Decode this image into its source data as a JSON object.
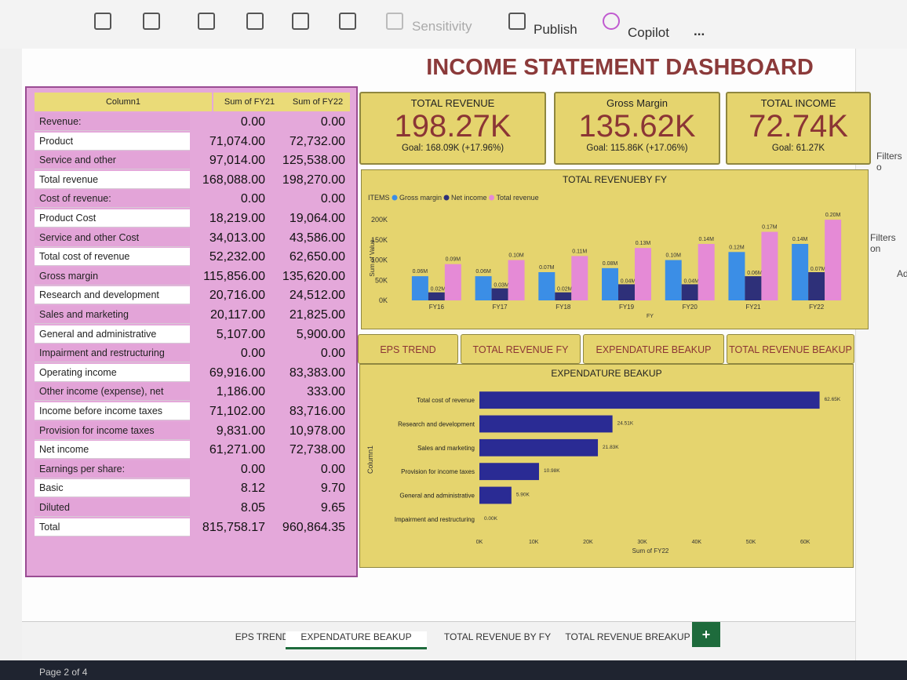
{
  "toolbar": {
    "items": [
      "Sensitivity",
      "Publish",
      "Copilot",
      "..."
    ]
  },
  "title": "INCOME STATEMENT DASHBOARD",
  "filters_pane": {
    "items": [
      "Filters o",
      "Filters on",
      "Ad"
    ]
  },
  "table": {
    "headers": [
      "Column1",
      "Sum of FY21",
      "Sum of FY22"
    ],
    "rows": [
      [
        "Revenue:",
        "0.00",
        "0.00"
      ],
      [
        "Product",
        "71,074.00",
        "72,732.00"
      ],
      [
        "Service and other",
        "97,014.00",
        "125,538.00"
      ],
      [
        "Total revenue",
        "168,088.00",
        "198,270.00"
      ],
      [
        "Cost of revenue:",
        "0.00",
        "0.00"
      ],
      [
        "Product Cost",
        "18,219.00",
        "19,064.00"
      ],
      [
        "Service and other Cost",
        "34,013.00",
        "43,586.00"
      ],
      [
        "Total cost of revenue",
        "52,232.00",
        "62,650.00"
      ],
      [
        "Gross margin",
        "115,856.00",
        "135,620.00"
      ],
      [
        "Research and development",
        "20,716.00",
        "24,512.00"
      ],
      [
        "Sales and marketing",
        "20,117.00",
        "21,825.00"
      ],
      [
        "General and administrative",
        "5,107.00",
        "5,900.00"
      ],
      [
        "Impairment and restructuring",
        "0.00",
        "0.00"
      ],
      [
        "Operating income",
        "69,916.00",
        "83,383.00"
      ],
      [
        "Other income (expense), net",
        "1,186.00",
        "333.00"
      ],
      [
        "Income before income taxes",
        "71,102.00",
        "83,716.00"
      ],
      [
        "Provision for income taxes",
        "9,831.00",
        "10,978.00"
      ],
      [
        "Net income",
        "61,271.00",
        "72,738.00"
      ],
      [
        "Earnings per share:",
        "0.00",
        "0.00"
      ],
      [
        "Basic",
        "8.12",
        "9.70"
      ],
      [
        "Diluted",
        "8.05",
        "9.65"
      ],
      [
        "Total",
        "815,758.17",
        "960,864.35"
      ]
    ]
  },
  "kpis": [
    {
      "label": "TOTAL REVENUE",
      "value": "198.27K",
      "goal": "Goal: 168.09K (+17.96%)"
    },
    {
      "label": "Gross Margin",
      "value": "135.62K",
      "goal": "Goal: 115.86K (+17.06%)"
    },
    {
      "label": "TOTAL INCOME",
      "value": "72.74K",
      "goal": "Goal: 61.27K"
    }
  ],
  "buttons": [
    "EPS TREND",
    "TOTAL REVENUE FY",
    "EXPENDATURE BEAKUP",
    "TOTAL REVENUE BEAKUP"
  ],
  "chart_data": [
    {
      "type": "bar",
      "title": "TOTAL REVENUEBY FY",
      "legend_title": "ITEMS",
      "y_label": "Sum of Value",
      "x_label": "FY",
      "categories": [
        "FY16",
        "FY17",
        "FY18",
        "FY19",
        "FY20",
        "FY21",
        "FY22"
      ],
      "series": [
        {
          "name": "Gross margin",
          "color": "#3b8ee6",
          "values": [
            60000,
            60000,
            70000,
            80000,
            100000,
            120000,
            140000
          ],
          "value_labels": [
            "0.06M",
            "0.06M",
            "0.07M",
            "0.08M",
            "0.10M",
            "0.12M",
            "0.14M"
          ]
        },
        {
          "name": "Net income",
          "color": "#2e3079",
          "values": [
            20000,
            30000,
            20000,
            40000,
            40000,
            60000,
            70000
          ],
          "value_labels": [
            "0.02M",
            "0.03M",
            "0.02M",
            "0.04M",
            "0.04M",
            "0.06M",
            "0.07M"
          ]
        },
        {
          "name": "Total revenue",
          "color": "#e58ad6",
          "values": [
            90000,
            100000,
            110000,
            130000,
            140000,
            170000,
            200000
          ],
          "value_labels": [
            "0.09M",
            "0.10M",
            "0.11M",
            "0.13M",
            "0.14M",
            "0.17M",
            "0.20M"
          ]
        }
      ],
      "ylim": [
        0,
        210000
      ],
      "yticks": [
        {
          "value": 0,
          "label": "0K"
        },
        {
          "value": 50000,
          "label": "50K"
        },
        {
          "value": 100000,
          "label": "100K"
        },
        {
          "value": 150000,
          "label": "150K"
        },
        {
          "value": 200000,
          "label": "200K"
        }
      ]
    },
    {
      "type": "hbar",
      "title": "EXPENDATURE BEAKUP",
      "y_label": "Column1",
      "x_label": "Sum of FY22",
      "color": "#2a2b94",
      "categories": [
        "Total cost of revenue",
        "Research and development",
        "Sales and marketing",
        "Provision for income taxes",
        "General and administrative",
        "Impairment and restructuring"
      ],
      "values": [
        62650,
        24512,
        21825,
        10978,
        5900,
        0
      ],
      "value_labels": [
        "62.65K",
        "24.51K",
        "21.83K",
        "10.98K",
        "5.90K",
        "0.00K"
      ],
      "xlim": [
        0,
        63000
      ],
      "xticks": [
        {
          "value": 0,
          "label": "0K"
        },
        {
          "value": 10000,
          "label": "10K"
        },
        {
          "value": 20000,
          "label": "20K"
        },
        {
          "value": 30000,
          "label": "30K"
        },
        {
          "value": 40000,
          "label": "40K"
        },
        {
          "value": 50000,
          "label": "50K"
        },
        {
          "value": 60000,
          "label": "60K"
        }
      ]
    }
  ],
  "tabs": [
    "EPS TREND",
    "EXPENDATURE BEAKUP",
    "TOTAL REVENUE BY FY",
    "TOTAL REVENUE BREAKUP",
    "+"
  ],
  "status": "Page 2 of 4"
}
